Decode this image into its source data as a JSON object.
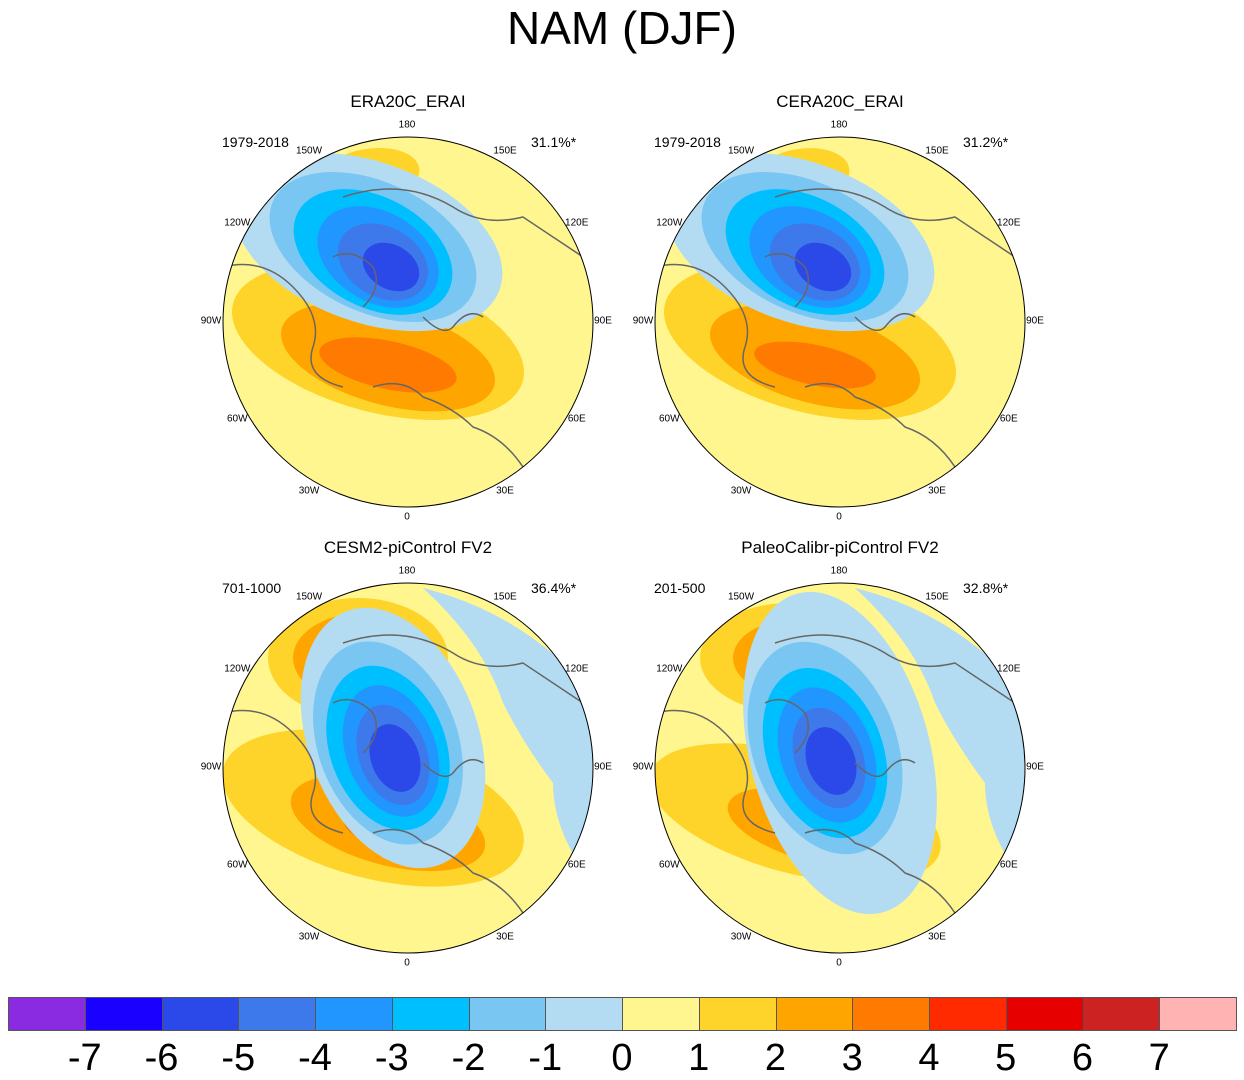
{
  "title": "NAM (DJF)",
  "panels": [
    {
      "title": "ERA20C_ERAI",
      "period": "1979-2018",
      "variance": "31.1%*"
    },
    {
      "title": "CERA20C_ERAI",
      "period": "1979-2018",
      "variance": "31.2%*"
    },
    {
      "title": "CESM2-piControl FV2",
      "period": "701-1000",
      "variance": "36.4%*"
    },
    {
      "title": "PaleoCalibr-piControl FV2",
      "period": "201-500",
      "variance": "32.8%*"
    }
  ],
  "longitude_labels": [
    "180",
    "150E",
    "120E",
    "90E",
    "60E",
    "30E",
    "0",
    "30W",
    "60W",
    "90W",
    "120W",
    "150W"
  ],
  "colorbar": {
    "labels": [
      "-7",
      "-6",
      "-5",
      "-4",
      "-3",
      "-2",
      "-1",
      "0",
      "1",
      "2",
      "3",
      "4",
      "5",
      "6",
      "7"
    ],
    "colors": [
      "#8a2be2",
      "#1a00ff",
      "#2b48e8",
      "#3d79eb",
      "#2196ff",
      "#00bfff",
      "#79c6f3",
      "#b3dcf2",
      "#fff68f",
      "#ffd42a",
      "#ffa500",
      "#ff7a00",
      "#ff2a00",
      "#e60000",
      "#cc2222",
      "#ffb3b3"
    ]
  }
}
